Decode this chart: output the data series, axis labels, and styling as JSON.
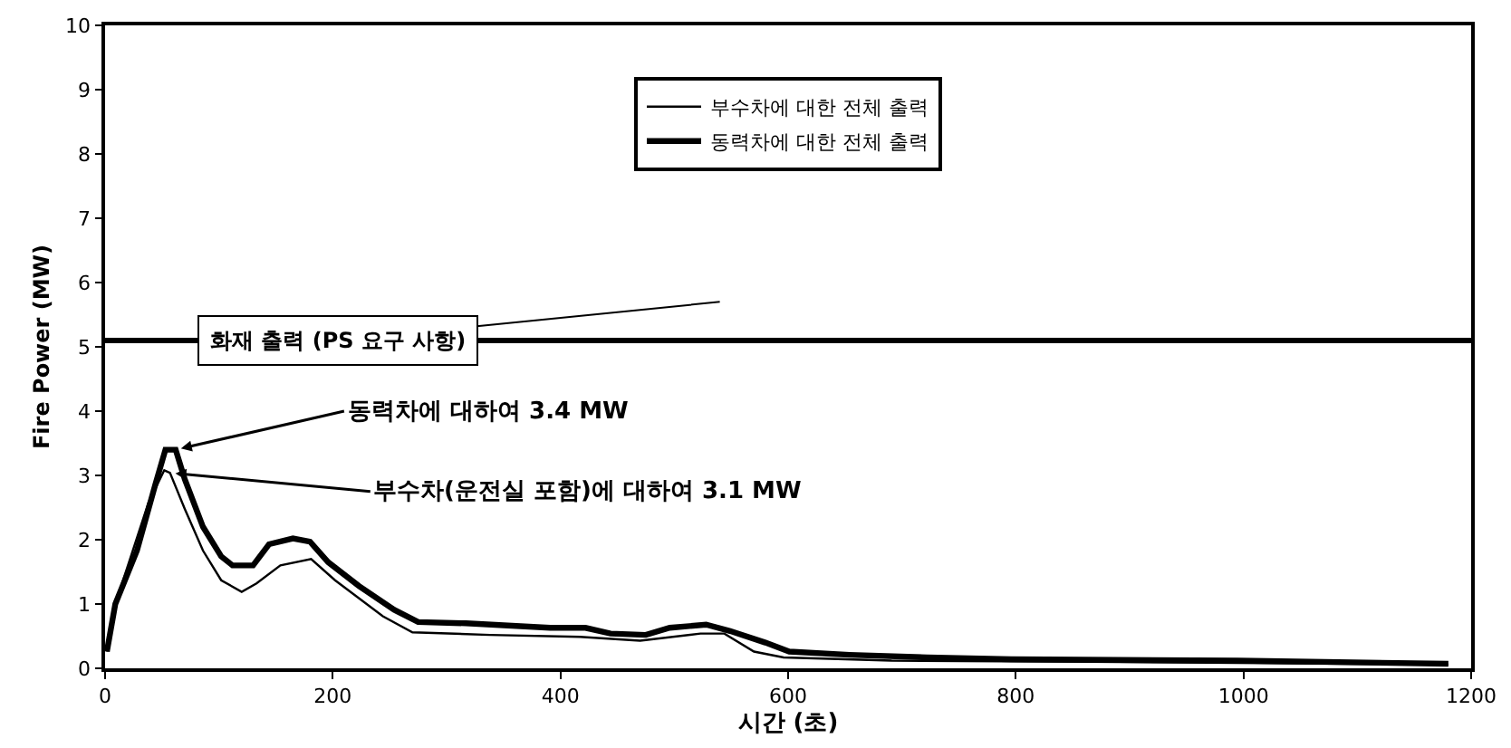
{
  "chart_data": {
    "type": "line",
    "xlabel": "시간 (초)",
    "ylabel": "Fire Power (MW)",
    "xlim": [
      0,
      1200
    ],
    "xticks": [
      0,
      200,
      400,
      600,
      800,
      1000,
      1200
    ],
    "ylim": [
      0,
      10
    ],
    "yticks": [
      0,
      1,
      2,
      3,
      4,
      5,
      6,
      7,
      8,
      9,
      10
    ],
    "legend": "top",
    "marker": "none",
    "line_style": "solid",
    "series": [
      {
        "name": "부수차에 대한 전체 출력",
        "color": "#000000",
        "x": [
          1.6,
          9,
          38,
          52,
          57,
          70,
          86,
          102,
          120,
          133,
          154,
          181,
          202,
          244,
          270,
          338,
          417,
          470,
          523,
          544,
          570,
          596,
          691,
          864,
          1180
        ],
        "values": [
          0.26,
          1.0,
          2.57,
          3.08,
          3.04,
          2.48,
          1.83,
          1.37,
          1.19,
          1.32,
          1.6,
          1.7,
          1.37,
          0.81,
          0.56,
          0.52,
          0.49,
          0.43,
          0.54,
          0.54,
          0.26,
          0.17,
          0.12,
          0.1,
          0.06
        ]
      },
      {
        "name": "동력차에 대한 전체 출력",
        "color": "#000000",
        "x": [
          1.6,
          9,
          28,
          44,
          53,
          62,
          70,
          86,
          102,
          112,
          130,
          144,
          165,
          180,
          196,
          223,
          254,
          275,
          317,
          391,
          422,
          444,
          475,
          496,
          528,
          549,
          580,
          601,
          654,
          722,
          796,
          995,
          1180
        ],
        "values": [
          0.26,
          1.0,
          1.83,
          2.85,
          3.4,
          3.4,
          2.94,
          2.2,
          1.74,
          1.6,
          1.6,
          1.93,
          2.02,
          1.97,
          1.65,
          1.28,
          0.91,
          0.72,
          0.7,
          0.63,
          0.63,
          0.54,
          0.52,
          0.63,
          0.68,
          0.58,
          0.4,
          0.26,
          0.21,
          0.17,
          0.14,
          0.12,
          0.07
        ]
      }
    ],
    "ref_lines": [
      {
        "axis": "y",
        "value": 5.1,
        "label": "화재 출력 (PS 요구 사항)",
        "color": "#000000"
      }
    ],
    "annotations": [
      {
        "text": "동력차에 대하여 3.4 MW",
        "x": 62,
        "y": 3.4
      },
      {
        "text": "부수차(운전실 포함)에 대하여 3.1 MW",
        "x": 57,
        "y": 3.04
      }
    ]
  }
}
